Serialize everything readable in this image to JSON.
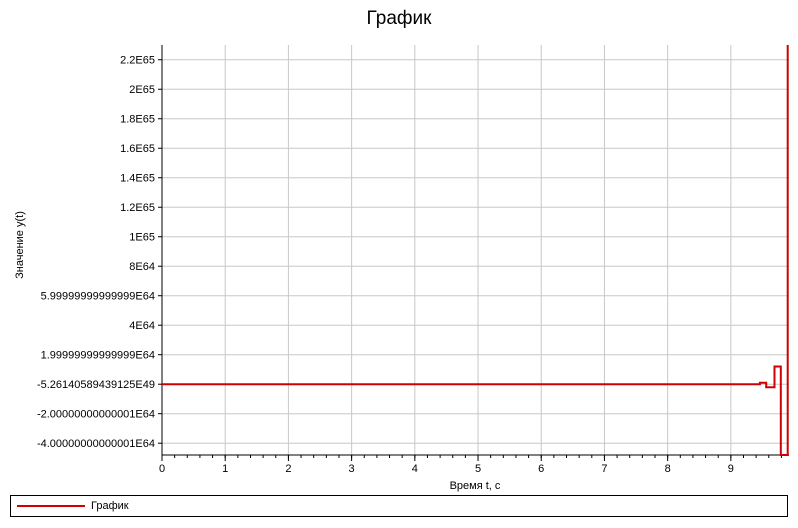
{
  "chart_data": {
    "type": "line",
    "title": "График",
    "xlabel": "Время t, с",
    "ylabel": "Значение y(t)",
    "xlim": [
      0,
      9.92
    ],
    "ylim": [
      -4.8e+64,
      2.3e+65
    ],
    "x_ticks": [
      "0",
      "1",
      "2",
      "3",
      "4",
      "5",
      "6",
      "7",
      "8",
      "9"
    ],
    "y_ticks": [
      {
        "value": 2.2e+65,
        "label": "2.2E65"
      },
      {
        "value": 2e+65,
        "label": "2E65"
      },
      {
        "value": 1.8e+65,
        "label": "1.8E65"
      },
      {
        "value": 1.6e+65,
        "label": "1.6E65"
      },
      {
        "value": 1.4e+65,
        "label": "1.4E65"
      },
      {
        "value": 1.2e+65,
        "label": "1.2E65"
      },
      {
        "value": 1e+65,
        "label": "1E65"
      },
      {
        "value": 8e+64,
        "label": "8E64"
      },
      {
        "value": 6e+64,
        "label": "5.99999999999999E64"
      },
      {
        "value": 4e+64,
        "label": "4E64"
      },
      {
        "value": 2e+64,
        "label": "1.99999999999999E64"
      },
      {
        "value": -5.26140589439125e+49,
        "label": "-5.26140589439125E49"
      },
      {
        "value": -2e+64,
        "label": "-2.00000000000001E64"
      },
      {
        "value": -4e+64,
        "label": "-4.00000000000001E64"
      }
    ],
    "grid": true,
    "legend_position": "bottom",
    "series": [
      {
        "name": "График",
        "color": "#d00000",
        "points": [
          {
            "x": 0,
            "y": 0
          },
          {
            "x": 9.46,
            "y": 0
          },
          {
            "x": 9.46,
            "y": 1e+63
          },
          {
            "x": 9.56,
            "y": 1e+63
          },
          {
            "x": 9.56,
            "y": -2e+63
          },
          {
            "x": 9.69,
            "y": -2e+63
          },
          {
            "x": 9.69,
            "y": 1.2e+64
          },
          {
            "x": 9.79,
            "y": 1.2e+64
          },
          {
            "x": 9.79,
            "y": -4.8e+64
          },
          {
            "x": 9.9,
            "y": -4.8e+64
          },
          {
            "x": 9.9,
            "y": 2.3e+65
          }
        ]
      }
    ]
  }
}
